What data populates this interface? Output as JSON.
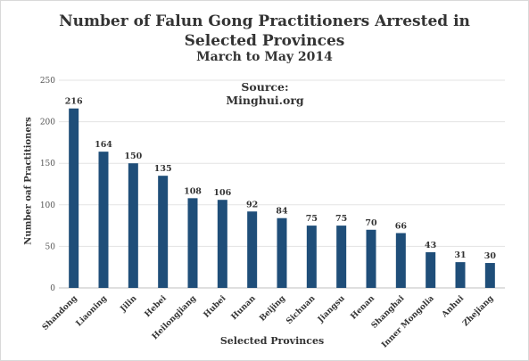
{
  "chart_data": {
    "type": "bar",
    "title": "Number of Falun Gong Practitioners Arrested in",
    "title_line2": "Selected Provinces",
    "subtitle": "March to May 2014",
    "annotation": "Source: Minghui.org",
    "xlabel": "Selected Provinces",
    "ylabel": "Number oaf Practitioners",
    "ylim": [
      0,
      250
    ],
    "yticks": [
      0,
      50,
      100,
      150,
      200,
      250
    ],
    "grid": true,
    "bar_color": "#1f4e79",
    "categories": [
      "Shandong",
      "Liaoning",
      "Jilin",
      "Hebei",
      "Heilongjiang",
      "Hubei",
      "Hunan",
      "Beijing",
      "Sichuan",
      "Jiangsu",
      "Henan",
      "Shanghai",
      "Inner Mongolia",
      "Anhui",
      "Zhejiang"
    ],
    "values": [
      216,
      164,
      150,
      135,
      108,
      106,
      92,
      84,
      75,
      75,
      70,
      66,
      43,
      31,
      30
    ]
  }
}
